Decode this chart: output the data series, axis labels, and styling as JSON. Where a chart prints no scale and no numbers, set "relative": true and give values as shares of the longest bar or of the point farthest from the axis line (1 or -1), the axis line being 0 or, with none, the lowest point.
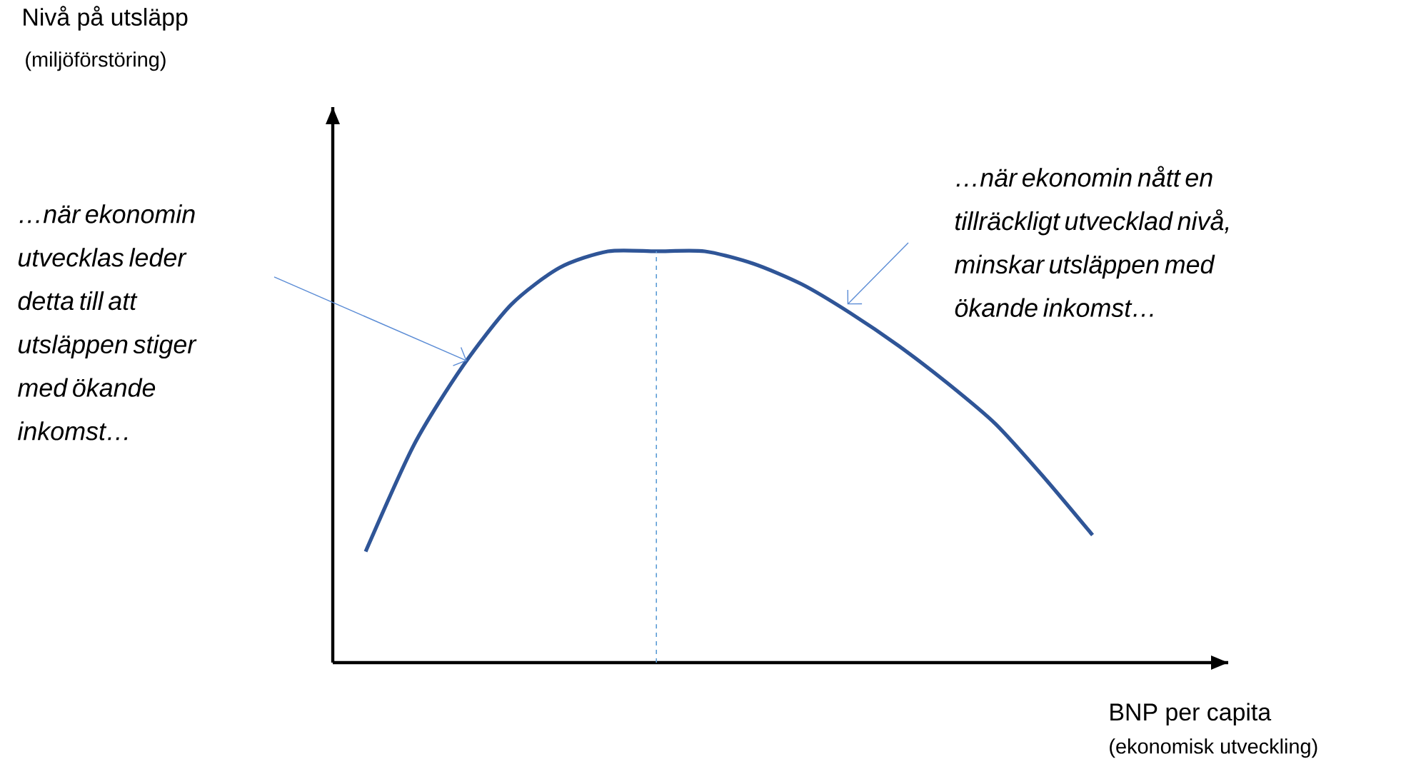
{
  "chart_data": {
    "type": "line",
    "relative": true,
    "color": "#2f5597",
    "categories": [
      null,
      null,
      null,
      null,
      null,
      null,
      null,
      null,
      null,
      null,
      null,
      null,
      null,
      null,
      null,
      null
    ],
    "values": [
      0.27,
      0.53,
      0.72,
      0.87,
      0.96,
      1.0,
      1.0,
      1.0,
      0.97,
      0.92,
      0.85,
      0.77,
      0.68,
      0.58,
      0.45,
      0.31
    ],
    "xlabel": "BNP per capita",
    "annotations": [
      "Nivå på utsläpp",
      "(miljöförstöring)",
      "(ekonomisk utveckling)",
      "…när ekonomin utvecklas leder detta till att utsläppen stiger med ökande inkomst…",
      "…när ekonomin nått en tillräckligt utvecklad nivå, minskar utsläppen med ökande inkomst…"
    ]
  }
}
